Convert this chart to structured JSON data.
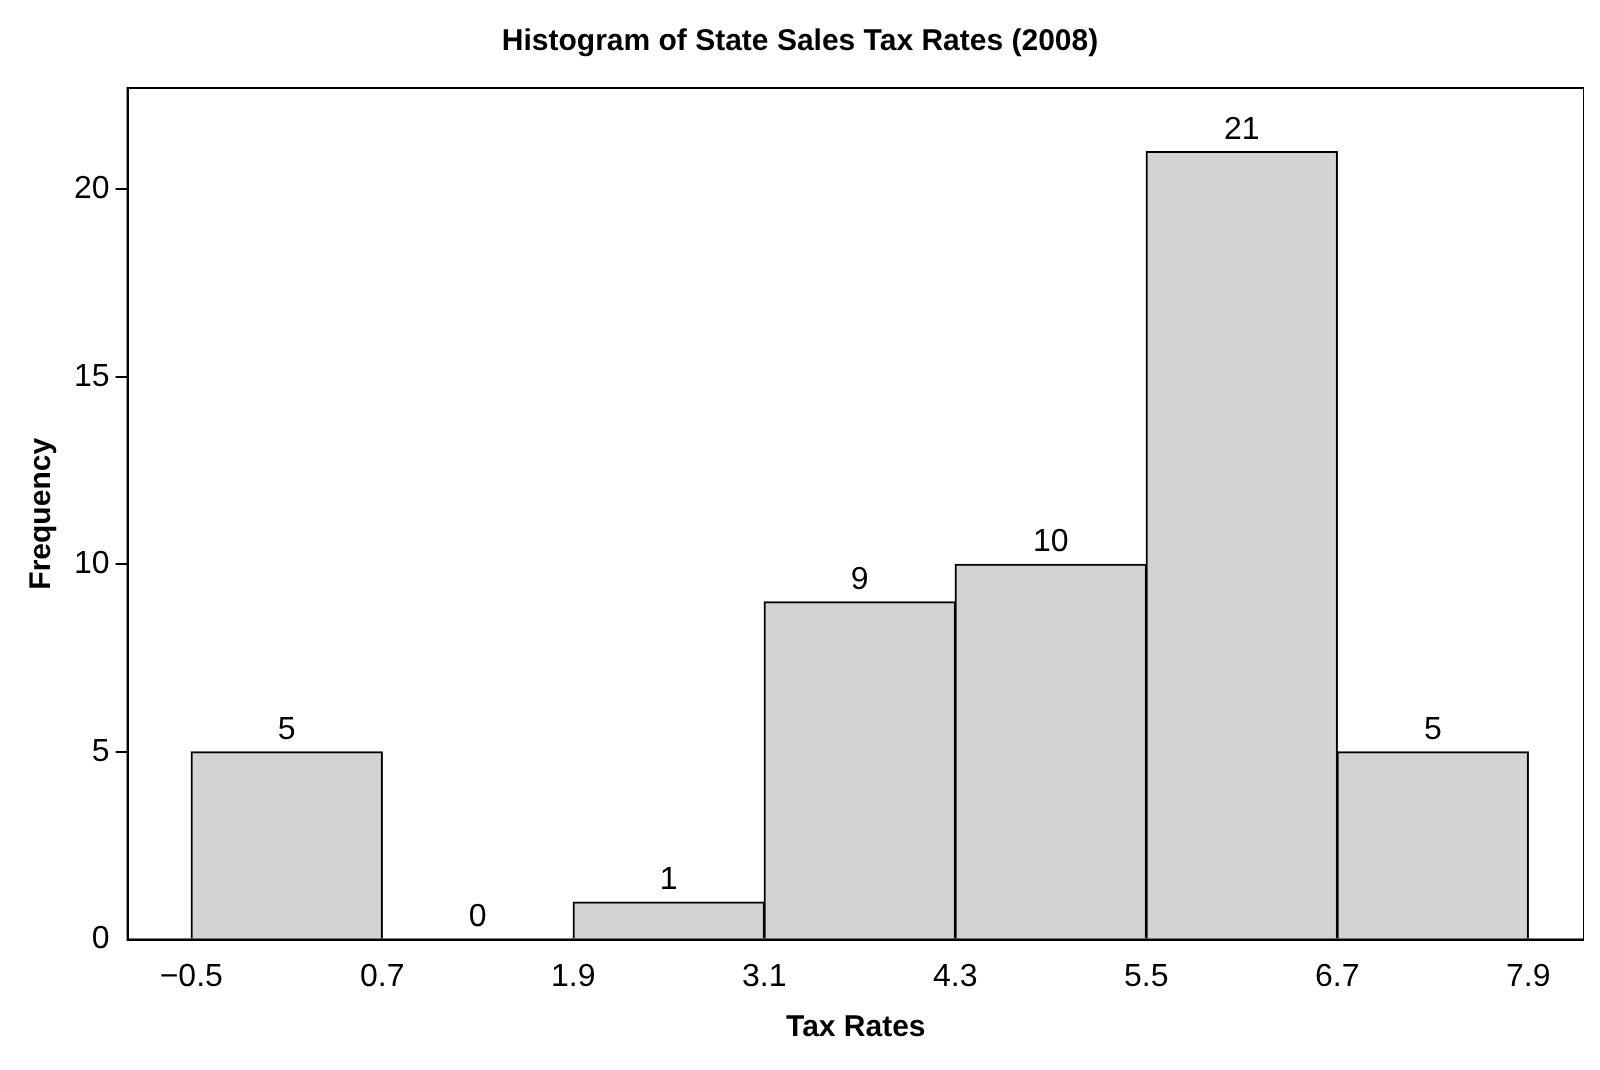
{
  "chart_data": {
    "type": "histogram",
    "title": "Histogram of State Sales Tax Rates (2008)",
    "xlabel": "Tax Rates",
    "ylabel": "Frequency",
    "bins": [
      -0.5,
      0.7,
      1.9,
      3.1,
      4.3,
      5.5,
      6.7,
      7.9
    ],
    "values": [
      5,
      0,
      1,
      9,
      10,
      21,
      5
    ],
    "color": "#d3d3d3",
    "data_labels": true,
    "xlim": [
      -0.9,
      8.25
    ],
    "xticks": [
      {
        "value": -0.5,
        "label": "−0.5"
      },
      0.7,
      1.9,
      3.1,
      4.3,
      5.5,
      6.7,
      7.9
    ],
    "ylim": [
      0,
      22.7
    ],
    "yticks": [
      0,
      5,
      10,
      15,
      20
    ],
    "grid": false,
    "legend": false
  }
}
